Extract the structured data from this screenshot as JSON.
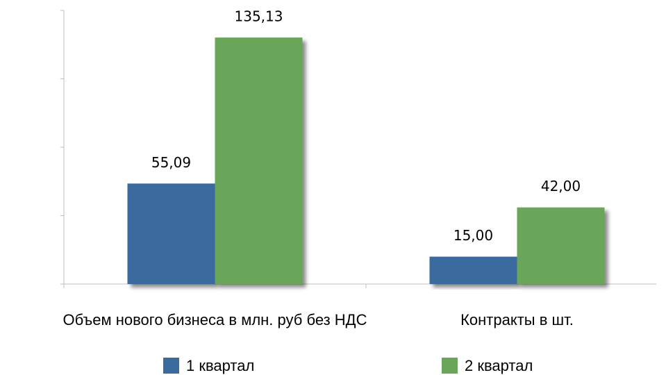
{
  "chart_data": {
    "type": "bar",
    "categories": [
      "Объем нового бизнеса в млн. руб без НДС",
      "Контракты в шт."
    ],
    "series": [
      {
        "name": "1 квартал",
        "color": "#3a6a9e",
        "values": [
          55.09,
          15.0
        ],
        "value_labels": [
          "55,09",
          "15,00"
        ]
      },
      {
        "name": "2 квартал",
        "color": "#6aa65a",
        "values": [
          135.13,
          42.0
        ],
        "value_labels": [
          "135,13",
          "42,00"
        ]
      }
    ],
    "ylim": [
      0,
      150
    ],
    "yticks": [
      0,
      37.5,
      75,
      112.5,
      150
    ],
    "legend": "bottom"
  }
}
